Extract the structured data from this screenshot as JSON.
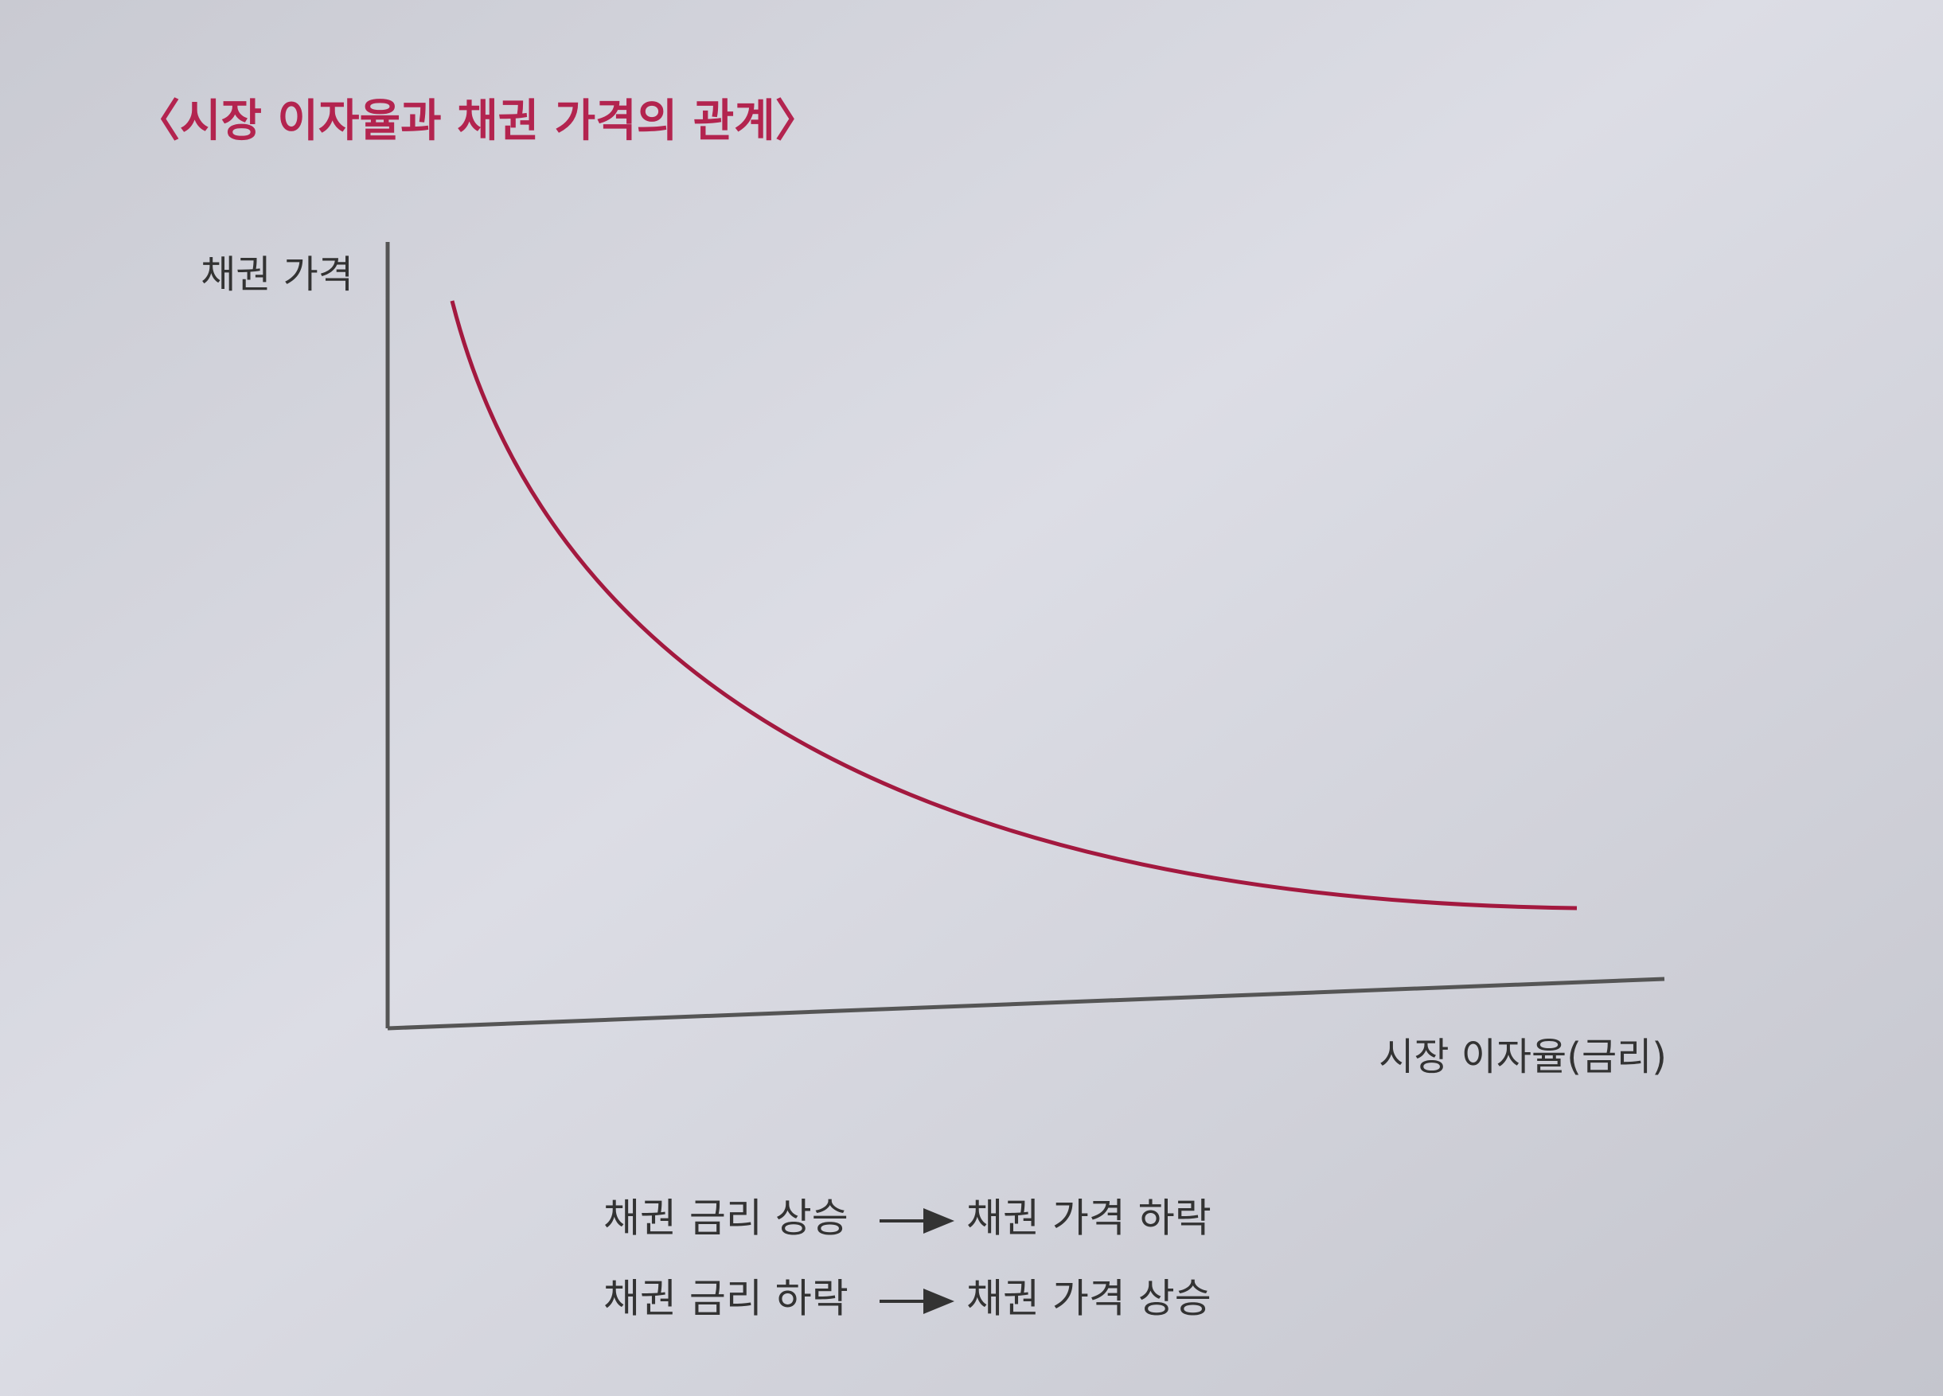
{
  "title": "〈시장 이자율과 채권 가격의 관계〉",
  "y_axis_label": "채권 가격",
  "x_axis_label": "시장 이자율(금리)",
  "notes": [
    {
      "cause": "채권 금리 상승",
      "effect": "채권 가격 하락"
    },
    {
      "cause": "채권 금리 하락",
      "effect": "채권 가격 상승"
    }
  ]
}
